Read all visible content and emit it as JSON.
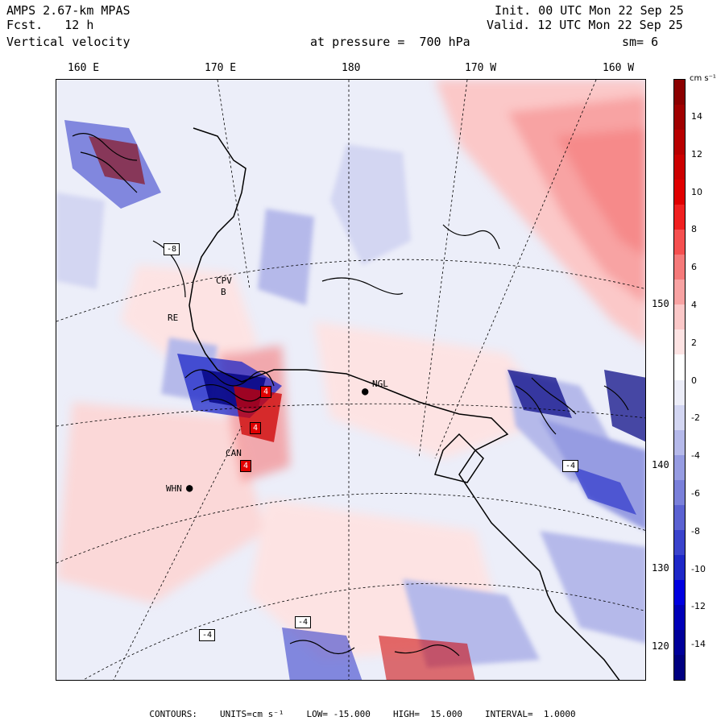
{
  "header": {
    "model": "AMPS 2.67-km MPAS",
    "fcst_label": "Fcst.",
    "fcst_value": "12 h",
    "field": "Vertical velocity",
    "init": "Init. 00 UTC Mon 22 Sep 25",
    "valid": "Valid. 12 UTC Mon 22 Sep 25",
    "pressure": "at pressure =  700 hPa",
    "smoothing": "sm= 6"
  },
  "lon_labels": [
    "160 E",
    "170 E",
    "180",
    "170 W",
    "160 W"
  ],
  "lat_labels": [
    "150 W",
    "140 W",
    "130 W",
    "120 W"
  ],
  "colorbar": {
    "unit": "cm s⁻¹",
    "ticks": [
      "14",
      "12",
      "10",
      "8",
      "6",
      "4",
      "2",
      "0",
      "-2",
      "-4",
      "-6",
      "-8",
      "-10",
      "-12",
      "-14"
    ],
    "colors": [
      "#8b0000",
      "#a00000",
      "#b80000",
      "#cc0000",
      "#e00000",
      "#f02020",
      "#f55050",
      "#f57a7a",
      "#f8a3a3",
      "#fbc8c8",
      "#fde3e3",
      "#ffffff",
      "#ecedf8",
      "#d3d6f2",
      "#b5b9ea",
      "#969ce2",
      "#7a80da",
      "#5b62d2",
      "#3a43cc",
      "#1e28c8",
      "#0000e0",
      "#0000b8",
      "#00009a",
      "#000080"
    ]
  },
  "stations": [
    {
      "label": "NGL"
    },
    {
      "label": "WHN"
    },
    {
      "label": "CPV"
    },
    {
      "label": "B"
    },
    {
      "label": "RE"
    },
    {
      "label": "CAN"
    }
  ],
  "box_labels": [
    "-8",
    "-4",
    "-4",
    "4",
    "4",
    "-4",
    "4"
  ],
  "footer": {
    "contours": "CONTOURS:",
    "units": "UNITS=cm s⁻¹",
    "low": "LOW= -15.000",
    "high": "HIGH=  15.000",
    "interval": "INTERVAL=  1.0000"
  }
}
